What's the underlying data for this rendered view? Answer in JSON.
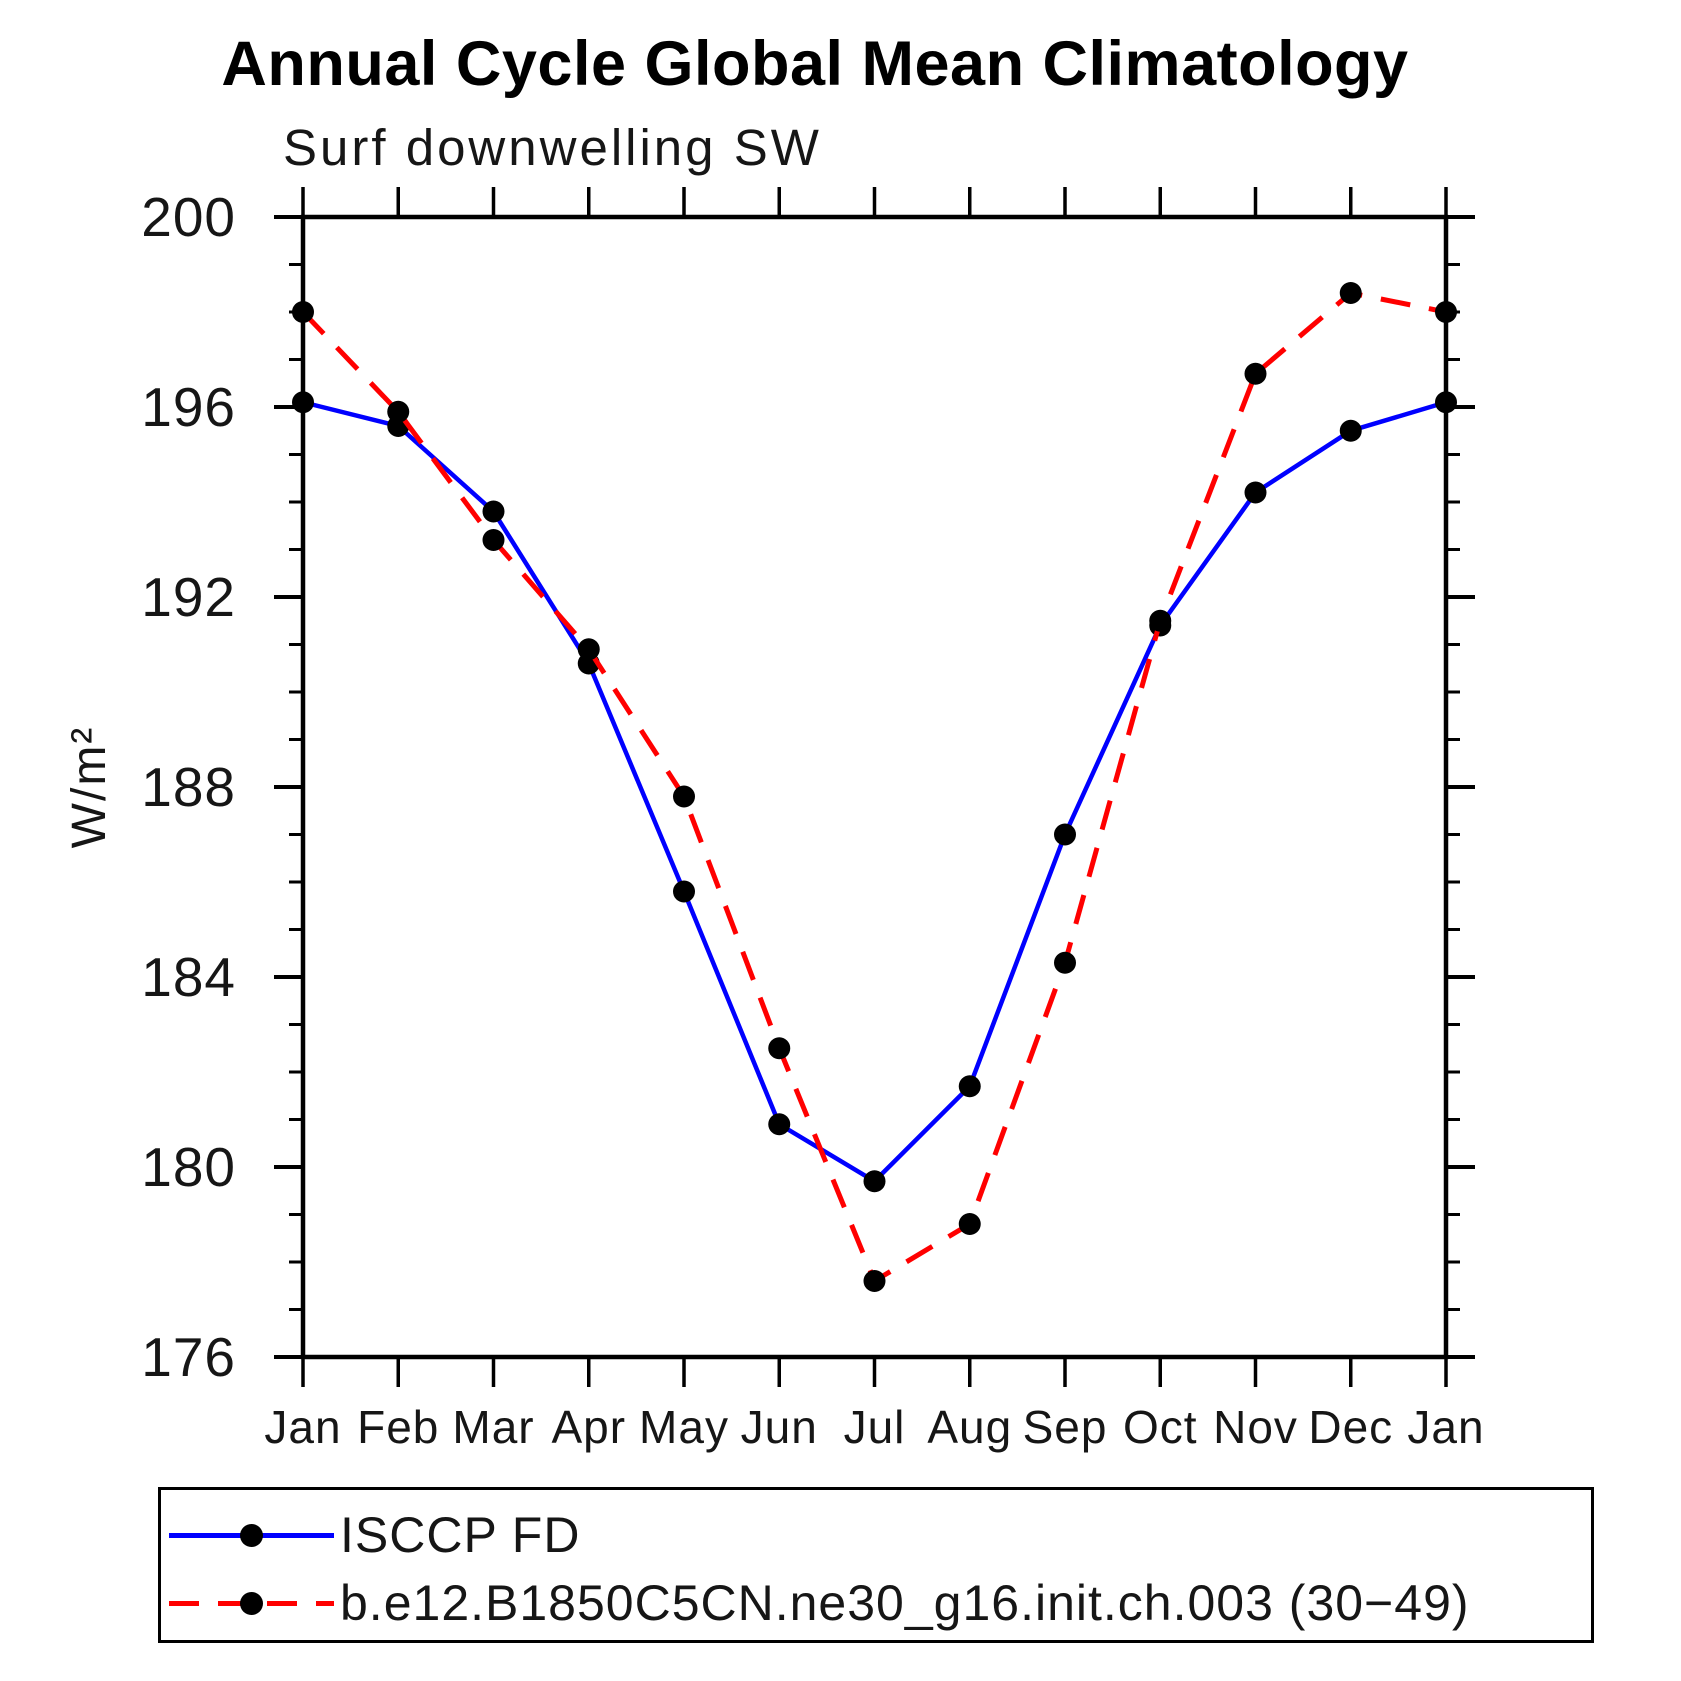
{
  "chart_data": {
    "type": "line",
    "title": "Annual Cycle Global Mean Climatology",
    "subtitle": "Surf downwelling SW",
    "ylabel": "W/m²",
    "xlabel": "",
    "categories": [
      "Jan",
      "Feb",
      "Mar",
      "Apr",
      "May",
      "Jun",
      "Jul",
      "Aug",
      "Sep",
      "Oct",
      "Nov",
      "Dec",
      "Jan"
    ],
    "ylim": [
      176,
      200
    ],
    "ytick_major": [
      176,
      180,
      184,
      188,
      192,
      196,
      200
    ],
    "ytick_minor_step": 1,
    "grid": false,
    "legend_position": "bottom",
    "frame_color": "#000000",
    "marker_color": "#000000",
    "series": [
      {
        "name": "ISCCP FD",
        "color": "#0000ff",
        "line_style": "solid",
        "marker": "circle",
        "values": [
          196.1,
          195.6,
          193.8,
          190.6,
          185.8,
          180.9,
          179.7,
          181.7,
          187.0,
          191.4,
          194.2,
          195.5,
          196.1
        ]
      },
      {
        "name": "b.e12.B1850C5CN.ne30_g16.init.ch.003 (30−49)",
        "color": "#ff0000",
        "line_style": "dashed",
        "marker": "circle",
        "values": [
          198.0,
          195.9,
          193.2,
          190.9,
          187.8,
          182.5,
          177.6,
          178.8,
          184.3,
          191.5,
          196.7,
          198.4,
          198.0
        ]
      }
    ]
  }
}
